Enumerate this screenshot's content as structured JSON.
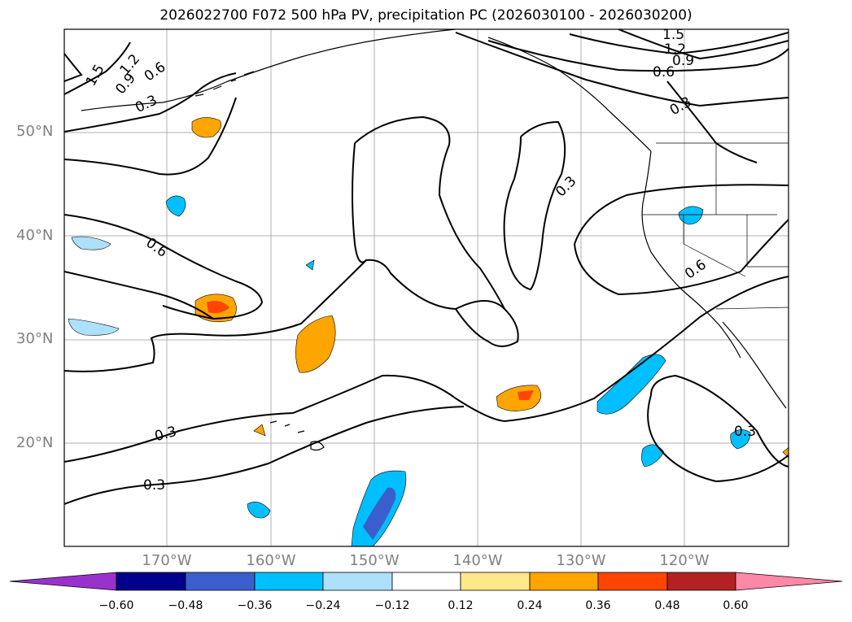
{
  "title": "2026022700 F072 500 hPa PV, precipitation PC (2026030100 - 2026030200)",
  "lat_labels": [
    "50°N",
    "40°N",
    "30°N",
    "20°N"
  ],
  "lon_labels": [
    "170°W",
    "160°W",
    "150°W",
    "140°W",
    "130°W",
    "120°W"
  ],
  "contour_labels": [
    "1.5",
    "0.9",
    "1.2",
    "0.6",
    "0.3",
    "0.3",
    "1.5",
    "1.2",
    "0.9",
    "0.6",
    "0.3",
    "0.6",
    "0.6",
    "0.3",
    "0.3",
    "0.3"
  ],
  "colorbar": {
    "ticks": [
      "−0.60",
      "−0.48",
      "−0.36",
      "−0.24",
      "−0.12",
      "0.12",
      "0.24",
      "0.36",
      "0.48",
      "0.60"
    ],
    "colors": [
      "#9932CC",
      "#00008B",
      "#3A5FCD",
      "#00BFFF",
      "#ADE0FA",
      "#FFFFFF",
      "#FFE88A",
      "#FFA500",
      "#FF4500",
      "#B22222",
      "#FF88A8"
    ]
  },
  "colors": {
    "pv_contour": "#000000",
    "grid": "#b0b0b0",
    "coast": "#000000",
    "axis_text": "#808080"
  }
}
